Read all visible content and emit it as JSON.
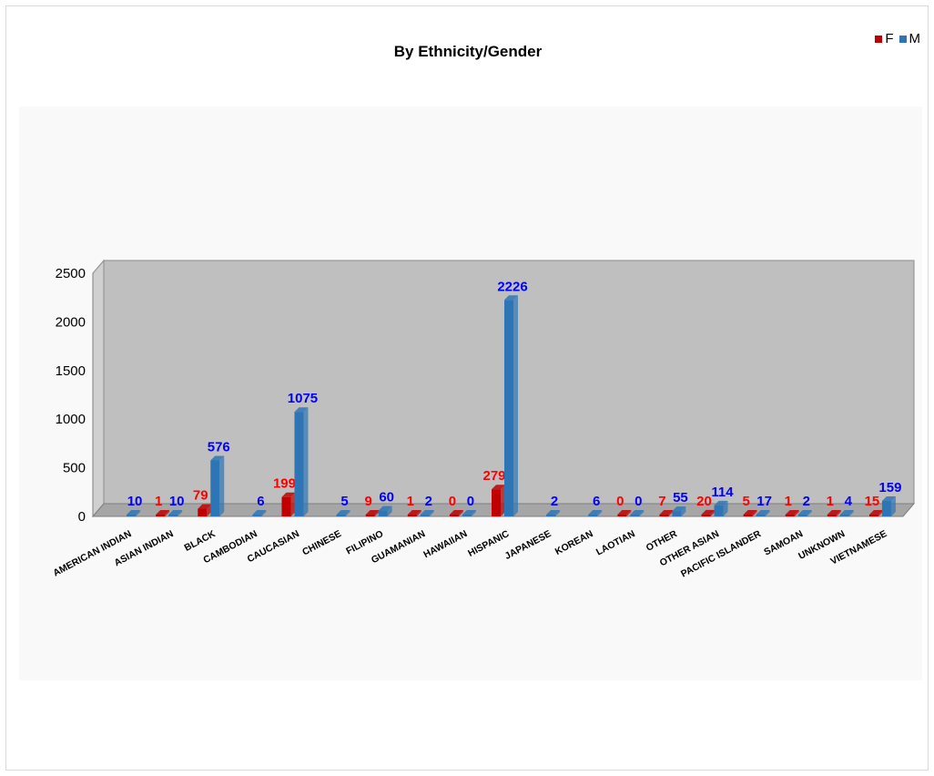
{
  "colors": {
    "female": "#c00000",
    "male": "#2e75b6",
    "female_label": "#ff0000",
    "male_label": "#0000ff",
    "wall": "#bfbfbf",
    "floor": "#a6a6a6"
  },
  "legend": {
    "female": "F",
    "male": "M"
  },
  "chart_data": {
    "type": "bar",
    "title": "By Ethnicity/Gender",
    "xlabel": "",
    "ylabel": "",
    "ylim": [
      0,
      2500
    ],
    "yticks": [
      0,
      500,
      1000,
      1500,
      2000,
      2500
    ],
    "legend_position": "top-right",
    "grid": false,
    "categories": [
      "AMERICAN INDIAN",
      "ASIAN INDIAN",
      "BLACK",
      "CAMBODIAN",
      "CAUCASIAN",
      "CHINESE",
      "FILIPINO",
      "GUAMANIAN",
      "HAWAIIAN",
      "HISPANIC",
      "JAPANESE",
      "KOREAN",
      "LAOTIAN",
      "OTHER",
      "OTHER ASIAN",
      "PACIFIC ISLANDER",
      "SAMOAN",
      "UNKNOWN",
      "VIETNAMESE"
    ],
    "series": [
      {
        "name": "F",
        "values": [
          null,
          1,
          79,
          null,
          199,
          null,
          9,
          1,
          0,
          279,
          null,
          null,
          0,
          7,
          20,
          5,
          1,
          1,
          15
        ]
      },
      {
        "name": "M",
        "values": [
          10,
          10,
          576,
          6,
          1075,
          5,
          60,
          2,
          0,
          2226,
          2,
          6,
          0,
          55,
          114,
          17,
          2,
          4,
          159
        ]
      }
    ]
  }
}
